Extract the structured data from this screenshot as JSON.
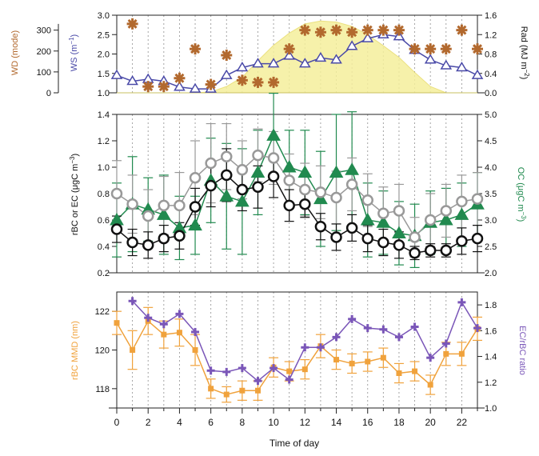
{
  "chart_data": [
    {
      "type": "line",
      "panel": "top",
      "x": [
        0,
        1,
        2,
        3,
        4,
        5,
        6,
        7,
        8,
        9,
        10,
        11,
        12,
        13,
        14,
        15,
        16,
        17,
        18,
        19,
        20,
        21,
        22,
        23
      ],
      "xlabel": "Time of day",
      "xticks": [
        "0",
        "2",
        "4",
        "6",
        "8",
        "10",
        "12",
        "14",
        "16",
        "18",
        "20",
        "22"
      ],
      "series": [
        {
          "name": "WD (mode)",
          "axis": "left-outer",
          "color": "#b2692e",
          "marker": "asterisk",
          "values": [
            null,
            330,
            30,
            30,
            70,
            210,
            40,
            180,
            60,
            50,
            50,
            210,
            300,
            290,
            300,
            290,
            300,
            300,
            300,
            210,
            210,
            210,
            300,
            210
          ]
        },
        {
          "name": "WS",
          "axis": "left",
          "color": "#4a4aa8",
          "marker": "open-triangle",
          "values": [
            1.45,
            1.3,
            1.35,
            1.3,
            1.15,
            1.1,
            1.1,
            1.45,
            1.65,
            1.75,
            1.75,
            1.95,
            1.75,
            1.9,
            1.85,
            2.2,
            2.4,
            2.5,
            2.45,
            2.1,
            1.85,
            1.7,
            1.65,
            1.45
          ]
        },
        {
          "name": "Rad",
          "axis": "right",
          "color": "#f5ef9c",
          "style": "filled-area",
          "values": [
            0,
            0,
            0,
            0,
            0,
            0,
            0.02,
            0.13,
            0.32,
            0.66,
            0.98,
            1.23,
            1.42,
            1.48,
            1.46,
            1.37,
            1.2,
            0.97,
            0.73,
            0.42,
            0.13,
            0,
            0,
            0
          ]
        }
      ],
      "axes": {
        "left_outer": {
          "label": "WD (mode)",
          "range": [
            0,
            360
          ],
          "ticks": [
            "0",
            "100",
            "200",
            "300"
          ]
        },
        "left": {
          "label": "WS (m",
          "label_sup": "−1",
          "label_end": ")",
          "range": [
            1.0,
            3.0
          ],
          "ticks": [
            "1.0",
            "1.5",
            "2.0",
            "2.5",
            "3.0"
          ]
        },
        "right": {
          "label": "Rad (MJ m",
          "label_sup": "−2",
          "label_end": ")",
          "range": [
            0,
            1.6
          ],
          "ticks": [
            "0.0",
            "0.4",
            "0.8",
            "1.2",
            "1.6"
          ]
        }
      }
    },
    {
      "type": "line",
      "panel": "middle",
      "x": [
        0,
        1,
        2,
        3,
        4,
        5,
        6,
        7,
        8,
        9,
        10,
        11,
        12,
        13,
        14,
        15,
        16,
        17,
        18,
        19,
        20,
        21,
        22,
        23
      ],
      "series": [
        {
          "name": "rBC",
          "axis": "left",
          "color": "#111111",
          "marker": "open-circle",
          "values": [
            0.53,
            0.43,
            0.41,
            0.46,
            0.48,
            0.7,
            0.86,
            0.94,
            0.83,
            0.85,
            0.93,
            0.71,
            0.72,
            0.55,
            0.47,
            0.54,
            0.46,
            0.43,
            0.41,
            0.35,
            0.37,
            0.37,
            0.44,
            0.46
          ],
          "err": [
            0.1,
            0.1,
            0.1,
            0.1,
            0.1,
            0.14,
            0.16,
            0.2,
            0.16,
            0.16,
            0.16,
            0.12,
            0.1,
            0.1,
            0.1,
            0.1,
            0.1,
            0.1,
            0.1,
            0.05,
            0.05,
            0.05,
            0.1,
            0.1
          ]
        },
        {
          "name": "EC",
          "axis": "left",
          "color": "#999999",
          "marker": "open-circle",
          "values": [
            0.8,
            0.72,
            0.63,
            0.71,
            0.71,
            0.92,
            1.03,
            1.08,
            0.98,
            1.09,
            1.07,
            0.9,
            0.83,
            0.81,
            0.77,
            0.87,
            0.75,
            0.65,
            0.67,
            0.47,
            0.6,
            0.67,
            0.74,
            0.76
          ],
          "err": [
            0.25,
            0.22,
            0.2,
            0.22,
            0.25,
            0.28,
            0.3,
            0.25,
            0.22,
            0.2,
            0.2,
            0.2,
            0.2,
            0.2,
            0.2,
            0.2,
            0.2,
            0.2,
            0.2,
            0.15,
            0.2,
            0.2,
            0.2,
            0.2
          ]
        },
        {
          "name": "OC",
          "axis": "right",
          "color": "#218a4f",
          "marker": "filled-triangle",
          "values": [
            3.0,
            3.3,
            3.2,
            3.1,
            2.85,
            2.9,
            3.75,
            3.45,
            3.35,
            3.9,
            4.6,
            4.0,
            3.9,
            3.4,
            3.9,
            3.95,
            3.0,
            2.95,
            2.75,
            2.7,
            2.95,
            3.0,
            3.1,
            3.3
          ],
          "err": [
            0.7,
            0.9,
            0.6,
            0.75,
            0.6,
            0.55,
            0.8,
            1.0,
            1.0,
            0.8,
            0.8,
            0.7,
            0.8,
            0.9,
            1.1,
            1.1,
            0.7,
            0.6,
            0.6,
            0.6,
            0.6,
            0.6,
            0.6,
            0.6
          ]
        }
      ],
      "axes": {
        "left": {
          "label": "rBC or EC (μgC m",
          "label_sup": "−3",
          "label_end": ")",
          "range": [
            0.2,
            1.4
          ],
          "ticks": [
            "0.2",
            "0.4",
            "0.6",
            "0.8",
            "1.0",
            "1.2",
            "1.4"
          ]
        },
        "right": {
          "label": "OC (μgC m",
          "label_sup": "−3",
          "label_end": ")",
          "range": [
            2.0,
            5.0
          ],
          "ticks": [
            "2.0",
            "2.5",
            "3.0",
            "3.5",
            "4.0",
            "4.5",
            "5.0"
          ]
        }
      }
    },
    {
      "type": "line",
      "panel": "bottom",
      "x": [
        0,
        1,
        2,
        3,
        4,
        5,
        6,
        7,
        8,
        9,
        10,
        11,
        12,
        13,
        14,
        15,
        16,
        17,
        18,
        19,
        20,
        21,
        22,
        23
      ],
      "series": [
        {
          "name": "rBC MMD",
          "axis": "left",
          "color": "#f0a23c",
          "marker": "filled-square",
          "values": [
            121.4,
            120.0,
            121.5,
            120.8,
            120.9,
            120.0,
            118.0,
            117.7,
            117.9,
            117.9,
            119.1,
            118.9,
            119.0,
            120.2,
            119.5,
            119.3,
            119.4,
            119.6,
            118.8,
            118.9,
            118.2,
            119.8,
            119.8,
            121.1
          ],
          "err": [
            0.6,
            1.0,
            0.7,
            0.7,
            0.7,
            0.8,
            0.5,
            0.4,
            0.5,
            0.5,
            0.5,
            0.5,
            0.5,
            0.6,
            0.5,
            0.5,
            0.5,
            0.5,
            0.5,
            0.5,
            0.5,
            0.6,
            0.6,
            0.6
          ]
        },
        {
          "name": "EC/rBC ratio",
          "axis": "right",
          "color": "#7a56b8",
          "marker": "plus-star",
          "values": [
            null,
            1.83,
            1.7,
            1.65,
            1.73,
            1.59,
            1.29,
            1.28,
            1.31,
            1.21,
            1.31,
            1.22,
            1.47,
            1.47,
            1.55,
            1.69,
            1.62,
            1.61,
            1.55,
            1.63,
            1.39,
            1.5,
            1.82,
            1.62
          ]
        }
      ],
      "axes": {
        "left": {
          "label": "rBC MMD (nm)",
          "range": [
            117,
            123
          ],
          "ticks": [
            "118",
            "120",
            "122"
          ]
        },
        "right": {
          "label": "EC/rBC ratio",
          "range": [
            1.0,
            1.9
          ],
          "ticks": [
            "1.0",
            "1.2",
            "1.4",
            "1.6",
            "1.8"
          ]
        }
      }
    }
  ]
}
